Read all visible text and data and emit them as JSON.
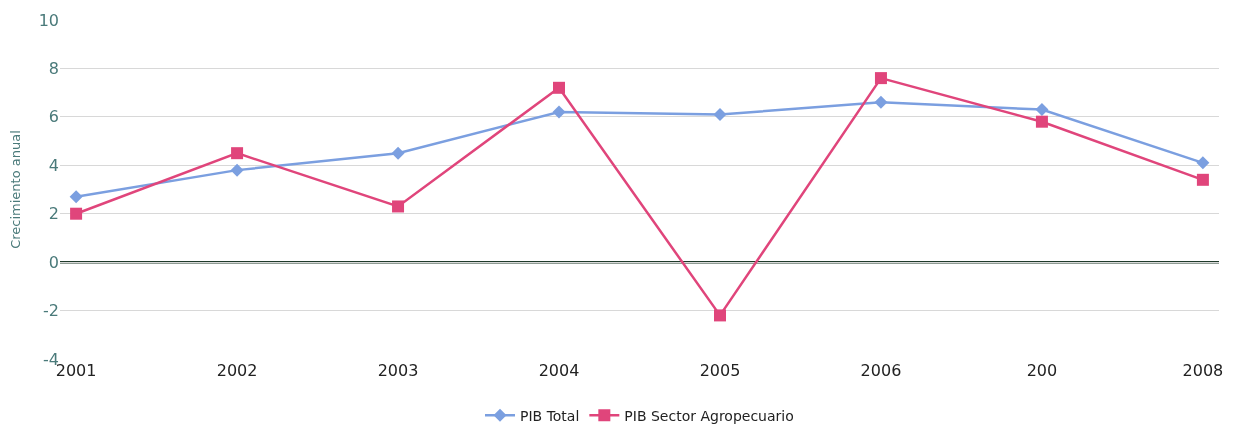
{
  "chart_data": {
    "type": "line",
    "ylabel": "Crecimiento anual",
    "categories": [
      "2001",
      "2002",
      "2003",
      "2004",
      "2005",
      "2006",
      "200",
      "2008"
    ],
    "series": [
      {
        "name": "PIB Total",
        "color": "#7b9fe0",
        "marker": "diamond",
        "values": [
          2.7,
          3.8,
          4.5,
          6.2,
          6.1,
          6.6,
          6.3,
          4.1
        ]
      },
      {
        "name": "PIB Sector Agropecuario",
        "color": "#e0457b",
        "marker": "square",
        "values": [
          2.0,
          4.5,
          2.3,
          7.2,
          -2.2,
          7.6,
          5.8,
          3.4
        ]
      }
    ],
    "ylim": [
      -4,
      10
    ],
    "yticks": [
      -4,
      -2,
      0,
      2,
      4,
      6,
      8,
      10
    ],
    "grid": "y",
    "legend": "bottom",
    "line_style": "solid",
    "ref_lines": [
      {
        "axis": "y",
        "value": 0,
        "color": "#1f3a2a"
      }
    ]
  }
}
